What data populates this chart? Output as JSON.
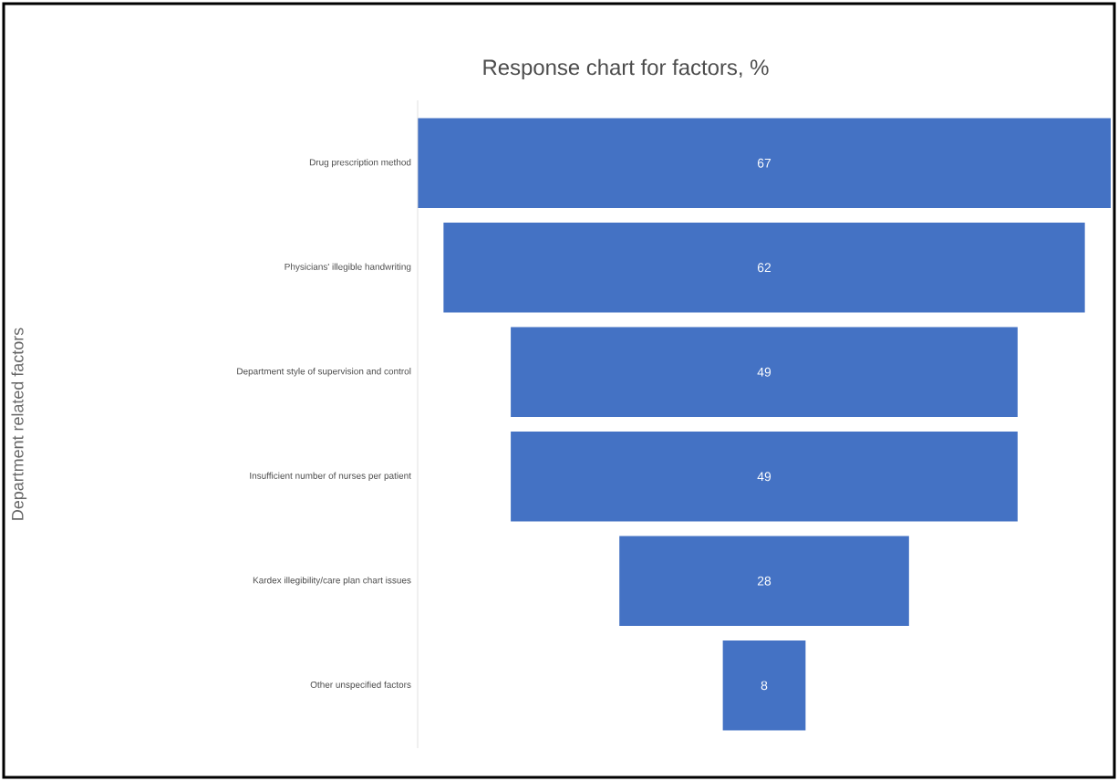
{
  "chart_data": {
    "type": "other",
    "title": "Response chart for factors, %",
    "ylabel": "Department related factors",
    "categories": [
      "Drug prescription method",
      "Physicians' illegible handwriting",
      "Department style of supervision and control",
      "Insufficient number of nurses per patient",
      "Kardex illegibility/care plan chart issues",
      "Other unspecified factors"
    ],
    "values": [
      67,
      62,
      49,
      49,
      28,
      8
    ],
    "color": "#4472c4",
    "data_labels": true
  }
}
